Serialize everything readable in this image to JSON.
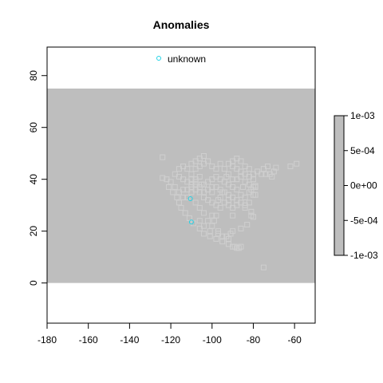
{
  "chart_data": {
    "type": "scatter",
    "title": "Anomalies",
    "xlabel": "",
    "ylabel": "",
    "xlim": [
      -180,
      -50
    ],
    "ylim": [
      -15.5,
      91
    ],
    "xticks": [
      "-180",
      "-160",
      "-140",
      "-120",
      "-100",
      "-80",
      "-60"
    ],
    "yticks": [
      "0",
      "20",
      "40",
      "60",
      "80"
    ],
    "grid": false,
    "raster": {
      "fill": "#bebebe",
      "x": [
        -180,
        -50
      ],
      "y": [
        0,
        75
      ]
    },
    "legend": {
      "position": "top",
      "entries": [
        {
          "label": "unknown",
          "marker": "circle",
          "color": "#22d3e6"
        }
      ]
    },
    "colorbar": {
      "position": "right",
      "labels": [
        "1e-03",
        "5e-04",
        "0e+00",
        "-5e-04",
        "-1e-03"
      ],
      "values": [
        0.001,
        0.0005,
        0,
        -0.0005,
        -0.001
      ],
      "fill": "#bebebe"
    },
    "series": [
      {
        "marker": "circle",
        "color": "#22d3e6",
        "points": [
          [
            -110.5,
            32.5
          ],
          [
            -110,
            23.5
          ]
        ]
      },
      {
        "marker": "square",
        "color": "#cfcfcf",
        "points": [
          [
            -124,
            48.5
          ],
          [
            -124,
            40.5
          ],
          [
            -122,
            40
          ],
          [
            -121,
            37
          ],
          [
            -119,
            35
          ],
          [
            -117,
            33
          ],
          [
            -116,
            31
          ],
          [
            -115,
            29
          ],
          [
            -113,
            27
          ],
          [
            -111,
            25
          ],
          [
            -109,
            23
          ],
          [
            -106,
            21
          ],
          [
            -104,
            19
          ],
          [
            -101,
            18
          ],
          [
            -98,
            17
          ],
          [
            -95,
            16
          ],
          [
            -92,
            15
          ],
          [
            -90,
            14
          ],
          [
            -88,
            13.5
          ],
          [
            -89,
            14
          ],
          [
            -87,
            13.5
          ],
          [
            -86,
            14
          ],
          [
            -120,
            39
          ],
          [
            -118,
            37
          ],
          [
            -116,
            35
          ],
          [
            -114,
            36
          ],
          [
            -112,
            36
          ],
          [
            -110,
            35
          ],
          [
            -108,
            36
          ],
          [
            -106,
            35
          ],
          [
            -104,
            33
          ],
          [
            -102,
            32
          ],
          [
            -100,
            31
          ],
          [
            -98,
            30
          ],
          [
            -96,
            29
          ],
          [
            -98,
            26
          ],
          [
            -99,
            24
          ],
          [
            -100,
            22
          ],
          [
            -102,
            24
          ],
          [
            -104,
            27
          ],
          [
            -106,
            29
          ],
          [
            -108,
            31
          ],
          [
            -106,
            24
          ],
          [
            -104,
            22
          ],
          [
            -101,
            20
          ],
          [
            -97,
            20
          ],
          [
            -97,
            19
          ],
          [
            -93,
            18
          ],
          [
            -91,
            19
          ],
          [
            -90,
            20
          ],
          [
            -92,
            17
          ],
          [
            -95,
            18
          ],
          [
            -110,
            40
          ],
          [
            -108,
            39
          ],
          [
            -106,
            41
          ],
          [
            -104,
            38
          ],
          [
            -102,
            39
          ],
          [
            -100,
            40
          ],
          [
            -98,
            41
          ],
          [
            -96,
            40
          ],
          [
            -94,
            39
          ],
          [
            -92,
            38
          ],
          [
            -90,
            37
          ],
          [
            -88,
            36
          ],
          [
            -86,
            34
          ],
          [
            -84,
            33
          ],
          [
            -82,
            31
          ],
          [
            -84,
            30
          ],
          [
            -86,
            31
          ],
          [
            -88,
            32
          ],
          [
            -90,
            33
          ],
          [
            -92,
            34
          ],
          [
            -94,
            35
          ],
          [
            -96,
            36
          ],
          [
            -98,
            37
          ],
          [
            -100,
            37
          ],
          [
            -102,
            36
          ],
          [
            -104,
            35
          ],
          [
            -106,
            37
          ],
          [
            -108,
            38
          ],
          [
            -110,
            38
          ],
          [
            -112,
            39
          ],
          [
            -114,
            40
          ],
          [
            -116,
            41
          ],
          [
            -110,
            42
          ],
          [
            -108,
            44
          ],
          [
            -106,
            45
          ],
          [
            -104,
            46
          ],
          [
            -102,
            47
          ],
          [
            -100,
            45
          ],
          [
            -98,
            44
          ],
          [
            -96,
            46
          ],
          [
            -94,
            44
          ],
          [
            -92,
            42
          ],
          [
            -90,
            40
          ],
          [
            -88,
            40
          ],
          [
            -86,
            41
          ],
          [
            -84,
            39
          ],
          [
            -82,
            38
          ],
          [
            -80,
            37
          ],
          [
            -92,
            46
          ],
          [
            -90,
            45
          ],
          [
            -88,
            44
          ],
          [
            -86,
            43
          ],
          [
            -84,
            42
          ],
          [
            -82,
            41
          ],
          [
            -80,
            40
          ],
          [
            -110,
            46
          ],
          [
            -108,
            47
          ],
          [
            -106,
            48
          ],
          [
            -104,
            49
          ],
          [
            -112,
            44
          ],
          [
            -114,
            45
          ],
          [
            -116,
            44
          ],
          [
            -118,
            42
          ],
          [
            -90,
            47
          ],
          [
            -88,
            48
          ],
          [
            -86,
            47
          ],
          [
            -84,
            45
          ],
          [
            -82,
            44
          ],
          [
            -78,
            43
          ],
          [
            -76,
            42
          ],
          [
            -80,
            42
          ],
          [
            -74,
            42
          ],
          [
            -72,
            42
          ],
          [
            -70,
            43
          ],
          [
            -73,
            45
          ],
          [
            -75,
            44
          ],
          [
            -71,
            41
          ],
          [
            -69,
            44.5
          ],
          [
            -79,
            37
          ],
          [
            -81,
            36
          ],
          [
            -79,
            34
          ],
          [
            -80,
            34
          ],
          [
            -82,
            35
          ],
          [
            -85,
            37
          ],
          [
            -92,
            30
          ],
          [
            -90,
            29
          ],
          [
            -88,
            30
          ],
          [
            -94,
            31
          ],
          [
            -96,
            33
          ],
          [
            -92,
            32
          ],
          [
            -84,
            29
          ],
          [
            -90,
            26
          ],
          [
            -86,
            21
          ],
          [
            -83,
            22.5
          ],
          [
            -81,
            26
          ],
          [
            -81,
            27.5
          ],
          [
            -80,
            25.5
          ],
          [
            -97,
            32
          ],
          [
            -95,
            35
          ],
          [
            -100,
            35
          ],
          [
            -105,
            38
          ],
          [
            -110,
            37
          ],
          [
            -112,
            33
          ],
          [
            -114,
            33
          ],
          [
            -62,
            45
          ],
          [
            -59,
            46
          ],
          [
            -75,
            6
          ],
          [
            -79,
            37.5
          ],
          [
            -93,
            41
          ],
          [
            -108,
            40
          ],
          [
            -100,
            26
          ]
        ]
      }
    ]
  }
}
